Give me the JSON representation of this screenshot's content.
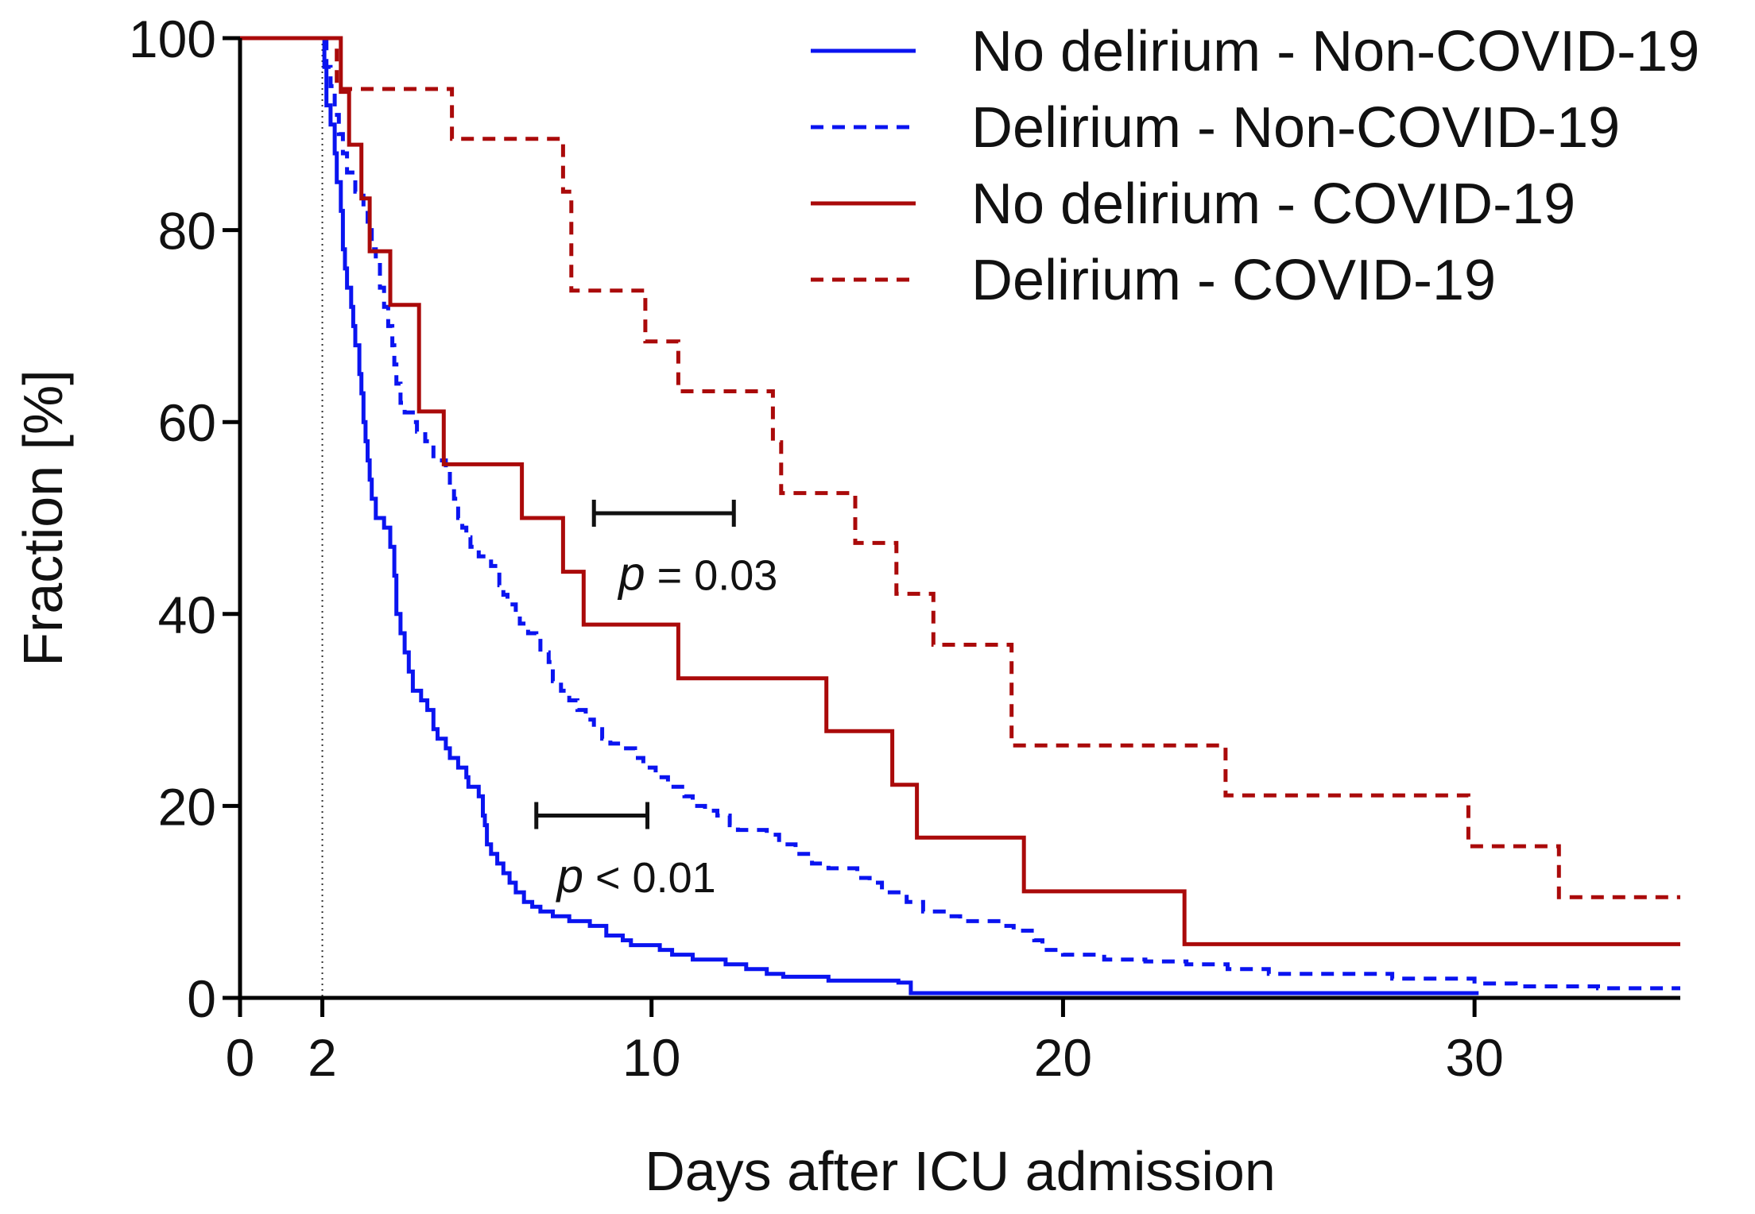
{
  "chart_data": {
    "type": "line",
    "subtype": "kaplan-meier-step",
    "title": "",
    "xlabel": "Days after ICU admission",
    "ylabel": "Fraction [%]",
    "xlim": [
      0,
      35
    ],
    "ylim": [
      0,
      100
    ],
    "x_ticks": [
      0,
      2,
      10,
      20,
      30
    ],
    "y_ticks": [
      0,
      20,
      40,
      60,
      80,
      100
    ],
    "reference_line_x": 2,
    "legend_position": "top-right",
    "series": [
      {
        "name": "No delirium - Non-COVID-19",
        "color": "#0a14f0",
        "dash": "solid",
        "points": [
          [
            0,
            100
          ],
          [
            2,
            100
          ],
          [
            2.05,
            97
          ],
          [
            2.1,
            93
          ],
          [
            2.2,
            91
          ],
          [
            2.3,
            88
          ],
          [
            2.35,
            85
          ],
          [
            2.45,
            82
          ],
          [
            2.5,
            78
          ],
          [
            2.55,
            76
          ],
          [
            2.6,
            74
          ],
          [
            2.7,
            72
          ],
          [
            2.75,
            70
          ],
          [
            2.8,
            68
          ],
          [
            2.9,
            65
          ],
          [
            2.95,
            63
          ],
          [
            3.0,
            60
          ],
          [
            3.05,
            58
          ],
          [
            3.1,
            56
          ],
          [
            3.15,
            54
          ],
          [
            3.2,
            52
          ],
          [
            3.3,
            50
          ],
          [
            3.5,
            49
          ],
          [
            3.65,
            47
          ],
          [
            3.75,
            44
          ],
          [
            3.8,
            40
          ],
          [
            3.9,
            38
          ],
          [
            4.0,
            36
          ],
          [
            4.1,
            34
          ],
          [
            4.2,
            32
          ],
          [
            4.4,
            31
          ],
          [
            4.55,
            30
          ],
          [
            4.7,
            28
          ],
          [
            4.8,
            27
          ],
          [
            5.0,
            26
          ],
          [
            5.1,
            25
          ],
          [
            5.3,
            24
          ],
          [
            5.5,
            23
          ],
          [
            5.55,
            22
          ],
          [
            5.8,
            21
          ],
          [
            5.9,
            19
          ],
          [
            5.95,
            18
          ],
          [
            6.0,
            16
          ],
          [
            6.1,
            15
          ],
          [
            6.25,
            14
          ],
          [
            6.4,
            13
          ],
          [
            6.55,
            12
          ],
          [
            6.7,
            11
          ],
          [
            6.9,
            10
          ],
          [
            7.1,
            9.5
          ],
          [
            7.3,
            9
          ],
          [
            7.6,
            8.5
          ],
          [
            8.0,
            8
          ],
          [
            8.5,
            7.5
          ],
          [
            8.9,
            6.5
          ],
          [
            9.3,
            6
          ],
          [
            9.5,
            5.5
          ],
          [
            10.2,
            5
          ],
          [
            10.5,
            4.5
          ],
          [
            11.0,
            4
          ],
          [
            11.8,
            3.5
          ],
          [
            12.3,
            3
          ],
          [
            12.8,
            2.5
          ],
          [
            13.2,
            2.2
          ],
          [
            14.3,
            1.8
          ],
          [
            16.0,
            1.6
          ],
          [
            16.3,
            0.5
          ],
          [
            30.1,
            0.5
          ]
        ]
      },
      {
        "name": "Delirium - Non-COVID-19",
        "color": "#0a14f0",
        "dash": "dashed",
        "points": [
          [
            0,
            100
          ],
          [
            2,
            100
          ],
          [
            2.1,
            97
          ],
          [
            2.2,
            95
          ],
          [
            2.3,
            92
          ],
          [
            2.4,
            90
          ],
          [
            2.5,
            88
          ],
          [
            2.6,
            86
          ],
          [
            2.8,
            84
          ],
          [
            3.0,
            82
          ],
          [
            3.1,
            80
          ],
          [
            3.2,
            78
          ],
          [
            3.3,
            77
          ],
          [
            3.4,
            74
          ],
          [
            3.5,
            72
          ],
          [
            3.6,
            70
          ],
          [
            3.7,
            68
          ],
          [
            3.75,
            66
          ],
          [
            3.8,
            64
          ],
          [
            3.9,
            62
          ],
          [
            4.0,
            61
          ],
          [
            4.2,
            60
          ],
          [
            4.3,
            59
          ],
          [
            4.5,
            58
          ],
          [
            4.7,
            56
          ],
          [
            5.0,
            55
          ],
          [
            5.1,
            53
          ],
          [
            5.2,
            52
          ],
          [
            5.3,
            50
          ],
          [
            5.4,
            49
          ],
          [
            5.5,
            48
          ],
          [
            5.6,
            47
          ],
          [
            5.8,
            46
          ],
          [
            6.1,
            45
          ],
          [
            6.3,
            43
          ],
          [
            6.4,
            42
          ],
          [
            6.5,
            41
          ],
          [
            6.7,
            40
          ],
          [
            6.8,
            39
          ],
          [
            7.0,
            38
          ],
          [
            7.2,
            37.5
          ],
          [
            7.3,
            36
          ],
          [
            7.5,
            35
          ],
          [
            7.6,
            33
          ],
          [
            7.8,
            32
          ],
          [
            8.0,
            31
          ],
          [
            8.2,
            30
          ],
          [
            8.4,
            29
          ],
          [
            8.6,
            28
          ],
          [
            8.8,
            27
          ],
          [
            9.0,
            26.5
          ],
          [
            9.3,
            26
          ],
          [
            9.6,
            25
          ],
          [
            9.8,
            24
          ],
          [
            10.1,
            23
          ],
          [
            10.4,
            22
          ],
          [
            10.8,
            21
          ],
          [
            11.0,
            20
          ],
          [
            11.3,
            19.5
          ],
          [
            11.6,
            19
          ],
          [
            11.9,
            18
          ],
          [
            12.1,
            17.5
          ],
          [
            12.8,
            17
          ],
          [
            13.1,
            16
          ],
          [
            13.5,
            15
          ],
          [
            13.9,
            14
          ],
          [
            14.3,
            13.5
          ],
          [
            15.0,
            12.5
          ],
          [
            15.3,
            12
          ],
          [
            15.6,
            11
          ],
          [
            16.2,
            10
          ],
          [
            16.6,
            9
          ],
          [
            17.1,
            8.5
          ],
          [
            17.5,
            8
          ],
          [
            18.5,
            7.5
          ],
          [
            18.8,
            7
          ],
          [
            19.3,
            6
          ],
          [
            19.5,
            5
          ],
          [
            20.0,
            4.5
          ],
          [
            21.0,
            4
          ],
          [
            22.0,
            3.8
          ],
          [
            23.0,
            3.5
          ],
          [
            24.0,
            3
          ],
          [
            25.0,
            2.5
          ],
          [
            28.0,
            2
          ],
          [
            30.0,
            1.5
          ],
          [
            31.0,
            1.2
          ],
          [
            33.0,
            1
          ],
          [
            35.0,
            1
          ]
        ]
      },
      {
        "name": "No delirium - COVID-19",
        "color": "#aa0a0a",
        "dash": "solid",
        "points": [
          [
            0,
            100
          ],
          [
            2.4,
            100
          ],
          [
            2.45,
            94.4
          ],
          [
            2.6,
            94.4
          ],
          [
            2.65,
            88.9
          ],
          [
            2.9,
            88.9
          ],
          [
            2.95,
            83.3
          ],
          [
            3.1,
            83.3
          ],
          [
            3.15,
            77.8
          ],
          [
            3.6,
            77.8
          ],
          [
            3.65,
            72.2
          ],
          [
            4.3,
            72.2
          ],
          [
            4.35,
            61.1
          ],
          [
            4.9,
            61.1
          ],
          [
            4.95,
            55.6
          ],
          [
            6.8,
            55.6
          ],
          [
            6.85,
            50
          ],
          [
            7.8,
            50
          ],
          [
            7.85,
            44.4
          ],
          [
            8.3,
            44.4
          ],
          [
            8.35,
            38.9
          ],
          [
            10.6,
            38.9
          ],
          [
            10.65,
            33.3
          ],
          [
            14.2,
            33.3
          ],
          [
            14.25,
            27.8
          ],
          [
            15.8,
            27.8
          ],
          [
            15.85,
            22.2
          ],
          [
            16.4,
            22.2
          ],
          [
            16.45,
            16.7
          ],
          [
            19.0,
            16.7
          ],
          [
            19.05,
            11.1
          ],
          [
            22.9,
            11.1
          ],
          [
            22.95,
            5.6
          ],
          [
            35.0,
            5.6
          ]
        ]
      },
      {
        "name": "Delirium - COVID-19",
        "color": "#aa0a0a",
        "dash": "dashed",
        "points": [
          [
            0,
            100
          ],
          [
            2.3,
            100
          ],
          [
            2.35,
            94.7
          ],
          [
            5.1,
            94.7
          ],
          [
            5.15,
            89.5
          ],
          [
            7.8,
            89.5
          ],
          [
            7.85,
            84
          ],
          [
            8.0,
            84
          ],
          [
            8.05,
            73.7
          ],
          [
            9.8,
            73.7
          ],
          [
            9.85,
            68.4
          ],
          [
            10.6,
            68.4
          ],
          [
            10.65,
            63.2
          ],
          [
            12.9,
            63.2
          ],
          [
            12.95,
            57.9
          ],
          [
            13.1,
            57.9
          ],
          [
            13.15,
            52.6
          ],
          [
            14.9,
            52.6
          ],
          [
            14.95,
            47.4
          ],
          [
            15.9,
            47.4
          ],
          [
            15.95,
            42.1
          ],
          [
            16.8,
            42.1
          ],
          [
            16.85,
            36.8
          ],
          [
            18.7,
            36.8
          ],
          [
            18.75,
            26.3
          ],
          [
            23.9,
            26.3
          ],
          [
            23.95,
            21.1
          ],
          [
            29.8,
            21.1
          ],
          [
            29.85,
            15.8
          ],
          [
            32.0,
            15.8
          ],
          [
            32.05,
            10.5
          ],
          [
            35.0,
            10.5
          ]
        ]
      }
    ],
    "annotations": [
      {
        "label": "p",
        "text": " = 0.03",
        "bracket_x": [
          8.6,
          12.0
        ],
        "bracket_y": 50.5,
        "text_x": 9.2,
        "text_y": 44
      },
      {
        "label": "p",
        "text": " < 0.01",
        "bracket_x": [
          7.2,
          9.9
        ],
        "bracket_y": 19,
        "text_x": 7.7,
        "text_y": 12.5
      }
    ]
  }
}
